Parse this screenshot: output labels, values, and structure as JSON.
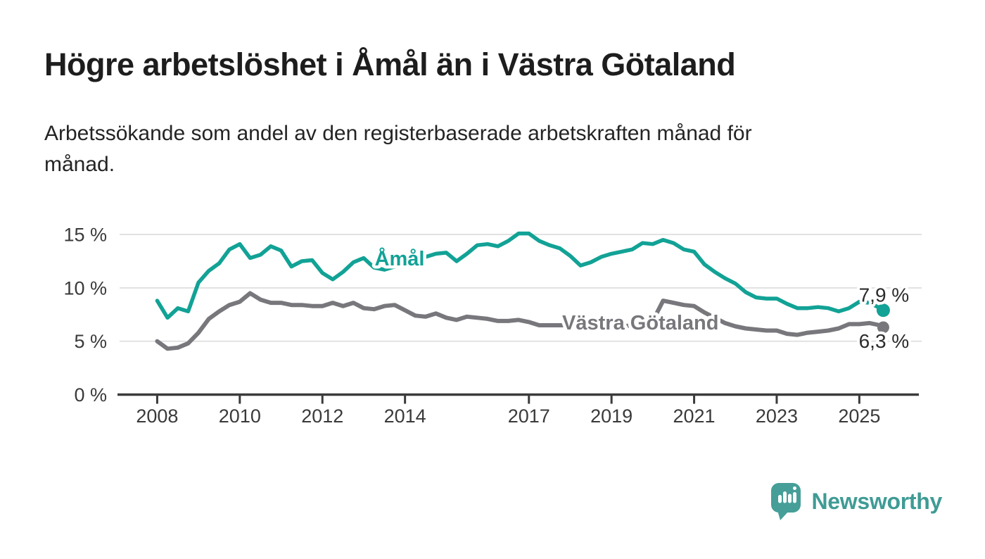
{
  "header": {
    "title": "Högre arbetslöshet i Åmål än i Västra Götaland",
    "subtitle": "Arbetssökande som andel av den registerbaserade arbetskraften månad för\nmånad."
  },
  "chart_data": {
    "type": "line",
    "title": "Högre arbetslöshet i Åmål än i Västra Götaland",
    "subtitle": "Arbetssökande som andel av den registerbaserade arbetskraften månad för månad.",
    "unit": "%",
    "x": [
      2008.0,
      2008.25,
      2008.5,
      2008.75,
      2009.0,
      2009.25,
      2009.5,
      2009.75,
      2010.0,
      2010.25,
      2010.5,
      2010.75,
      2011.0,
      2011.25,
      2011.5,
      2011.75,
      2012.0,
      2012.25,
      2012.5,
      2012.75,
      2013.0,
      2013.25,
      2013.5,
      2013.75,
      2014.0,
      2014.25,
      2014.5,
      2014.75,
      2015.0,
      2015.25,
      2015.5,
      2015.75,
      2016.0,
      2016.25,
      2016.5,
      2016.75,
      2017.0,
      2017.25,
      2017.5,
      2017.75,
      2018.0,
      2018.25,
      2018.5,
      2018.75,
      2019.0,
      2019.25,
      2019.5,
      2019.75,
      2020.0,
      2020.25,
      2020.5,
      2020.75,
      2021.0,
      2021.25,
      2021.5,
      2021.75,
      2022.0,
      2022.25,
      2022.5,
      2022.75,
      2023.0,
      2023.25,
      2023.5,
      2023.75,
      2024.0,
      2024.25,
      2024.5,
      2024.75,
      2025.0,
      2025.25,
      2025.5,
      2025.58
    ],
    "series": [
      {
        "name": "Åmål",
        "slug": "amal",
        "color": "#12a296",
        "value_label": "7,9 %",
        "end_value": 7.9,
        "label_pos": {
          "x": 2013.87,
          "y": 12.1
        },
        "values": [
          8.8,
          7.2,
          8.1,
          7.8,
          10.5,
          11.6,
          12.3,
          13.6,
          14.1,
          12.8,
          13.1,
          13.9,
          13.5,
          12.0,
          12.5,
          12.6,
          11.4,
          10.8,
          11.5,
          12.4,
          12.8,
          11.9,
          11.7,
          12.0,
          12.3,
          12.0,
          12.9,
          13.2,
          13.3,
          12.5,
          13.2,
          14.0,
          14.1,
          13.9,
          14.4,
          15.1,
          15.1,
          14.4,
          14.0,
          13.7,
          13.0,
          12.1,
          12.4,
          12.9,
          13.2,
          13.4,
          13.6,
          14.2,
          14.1,
          14.5,
          14.2,
          13.6,
          13.4,
          12.2,
          11.5,
          10.9,
          10.4,
          9.6,
          9.1,
          9.0,
          9.0,
          8.5,
          8.1,
          8.1,
          8.2,
          8.1,
          7.8,
          8.1,
          8.7,
          8.6,
          8.1,
          7.9
        ]
      },
      {
        "name": "Västra Götaland",
        "slug": "vastra-gotaland",
        "color": "#77777c",
        "value_label": "6,3 %",
        "end_value": 6.3,
        "label_pos": {
          "x": 2019.7,
          "y": 6.1
        },
        "values": [
          5.0,
          4.3,
          4.4,
          4.8,
          5.8,
          7.1,
          7.8,
          8.4,
          8.7,
          9.5,
          8.9,
          8.6,
          8.6,
          8.4,
          8.4,
          8.3,
          8.3,
          8.6,
          8.3,
          8.6,
          8.1,
          8.0,
          8.3,
          8.4,
          7.9,
          7.4,
          7.3,
          7.6,
          7.2,
          7.0,
          7.3,
          7.2,
          7.1,
          6.9,
          6.9,
          7.0,
          6.8,
          6.5,
          6.5,
          6.5,
          6.5,
          6.4,
          6.4,
          6.5,
          6.5,
          6.4,
          6.5,
          6.7,
          6.9,
          8.8,
          8.6,
          8.4,
          8.3,
          7.7,
          7.2,
          6.7,
          6.4,
          6.2,
          6.1,
          6.0,
          6.0,
          5.7,
          5.6,
          5.8,
          5.9,
          6.0,
          6.2,
          6.6,
          6.6,
          6.7,
          6.5,
          6.3
        ]
      }
    ],
    "xticks": [
      2008,
      2010,
      2012,
      2014,
      2017,
      2019,
      2021,
      2023,
      2025
    ],
    "yticks": [
      {
        "v": 0,
        "label": "0 %"
      },
      {
        "v": 5,
        "label": "5 %"
      },
      {
        "v": 10,
        "label": "10 %"
      },
      {
        "v": 15,
        "label": "15 %"
      }
    ],
    "xlim": [
      2007.09,
      2026.51
    ],
    "ylim": [
      0,
      15.3
    ],
    "grid": true,
    "legend": "inline",
    "grid_color": "#dcdcdc",
    "axis_color": "#3b3b3b"
  },
  "footer": {
    "brand": "Newsworthy"
  }
}
